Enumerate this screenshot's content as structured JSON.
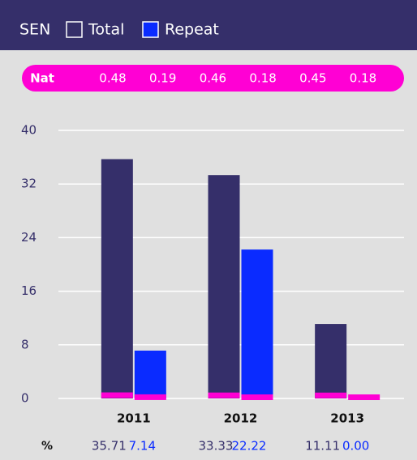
{
  "chart_data": {
    "type": "bar",
    "legend_title": "SEN",
    "categories": [
      "2011",
      "2012",
      "2013"
    ],
    "series": [
      {
        "name": "Total",
        "color": "#352f6a",
        "values": [
          35.71,
          33.33,
          11.11
        ],
        "value_labels": [
          "35.71",
          "33.33",
          "11.11"
        ]
      },
      {
        "name": "Repeat",
        "color": "#0a2bff",
        "values": [
          7.14,
          22.22,
          0
        ],
        "value_labels": [
          "7.14",
          "22.22",
          "0.00"
        ]
      }
    ],
    "national": {
      "label": "Nat",
      "color": "#ff00d4",
      "values": [
        0.48,
        0.19,
        0.46,
        0.18,
        0.45,
        0.18
      ]
    },
    "percent_label": "%",
    "ylim": [
      0,
      40
    ],
    "yticks": [
      0,
      8,
      16,
      24,
      32,
      40
    ],
    "grid": true
  }
}
